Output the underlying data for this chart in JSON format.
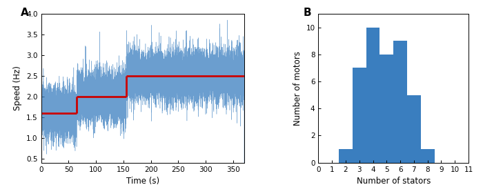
{
  "panel_A": {
    "title_label": "A",
    "xlabel": "Time (s)",
    "ylabel": "Speed (Hz)",
    "xlim": [
      0,
      370
    ],
    "ylim": [
      0.4,
      4.0
    ],
    "yticks": [
      0.5,
      1.0,
      1.5,
      2.0,
      2.5,
      3.0,
      3.5,
      4.0
    ],
    "xticks": [
      0,
      50,
      100,
      150,
      200,
      250,
      300,
      350
    ],
    "red_steps": [
      {
        "x_start": 0,
        "x_end": 65,
        "y": 1.6
      },
      {
        "x_start": 65,
        "x_end": 155,
        "y": 2.0
      },
      {
        "x_start": 155,
        "x_end": 370,
        "y": 2.5
      }
    ],
    "noise_color": "#3a7ebf",
    "red_color": "#cc0000",
    "noise_amplitude": 0.28,
    "noise_seed": 42,
    "n_points": 18000
  },
  "panel_B": {
    "title_label": "B",
    "xlabel": "Number of stators",
    "ylabel": "Number of motors",
    "xlim": [
      0,
      11
    ],
    "ylim": [
      0,
      11
    ],
    "yticks": [
      0,
      2,
      4,
      6,
      8,
      10
    ],
    "xticks": [
      0,
      1,
      2,
      3,
      4,
      5,
      6,
      7,
      8,
      9,
      10,
      11
    ],
    "bar_centers": [
      2,
      3,
      4,
      5,
      6,
      7,
      8
    ],
    "bar_heights": [
      1,
      7,
      10,
      8,
      9,
      5,
      1
    ],
    "bar_color": "#3a7ebf",
    "bar_width": 1.0
  }
}
